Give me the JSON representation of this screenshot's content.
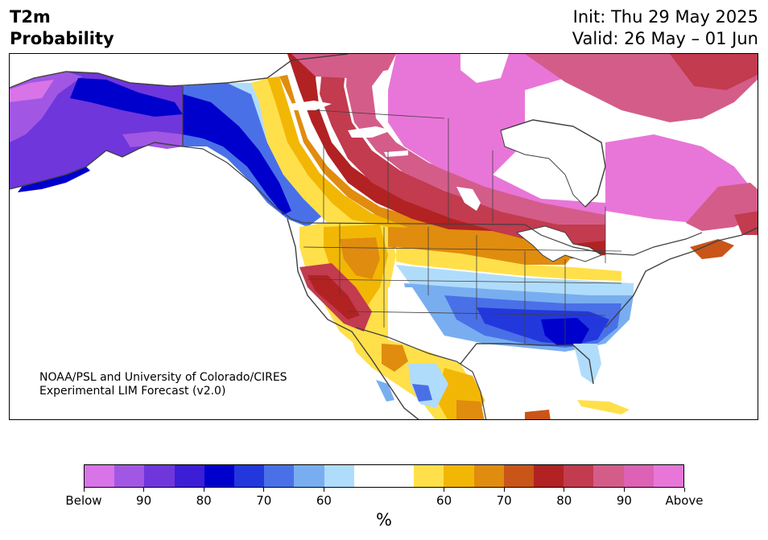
{
  "header": {
    "title_line1": "T2m",
    "title_line2": "Probability",
    "init": "Init: Thu 29 May 2025",
    "valid": "Valid: 26 May – 01 Jun"
  },
  "credit": {
    "line1": "NOAA/PSL and University of Colorado/CIRES",
    "line2": "Experimental LIM Forecast (v2.0)"
  },
  "colorbar": {
    "unit": "%",
    "colors": [
      "#d874e8",
      "#a157e3",
      "#6f36dc",
      "#3b1ed6",
      "#0000cc",
      "#2238dd",
      "#4a70e8",
      "#78aef0",
      "#b0dcfb",
      "#ffffff",
      "#ffffff",
      "#ffe04a",
      "#f2b705",
      "#e08c0f",
      "#c95518",
      "#b22222",
      "#c23b4e",
      "#d45c89",
      "#dd61b4",
      "#e876d8"
    ],
    "tick_labels": [
      "Below",
      "90",
      "80",
      "70",
      "60",
      "60",
      "70",
      "80",
      "90",
      "Above"
    ]
  },
  "map": {
    "colors": {
      "above": "#e876d8",
      "above_90": "#dd61b4",
      "above_85": "#d45c89",
      "above_80": "#c23b4e",
      "above_75": "#b22222",
      "above_70": "#c95518",
      "above_65": "#e08c0f",
      "above_60": "#f2b705",
      "above_55": "#ffe04a",
      "below_55": "#b0dcfb",
      "below_60": "#78aef0",
      "below_65": "#4a70e8",
      "below_70": "#2238dd",
      "below_75": "#0000cc",
      "below_80": "#3b1ed6",
      "below_85": "#6f36dc",
      "below_90": "#a157e3",
      "below": "#d874e8",
      "borders": "#404040"
    }
  }
}
